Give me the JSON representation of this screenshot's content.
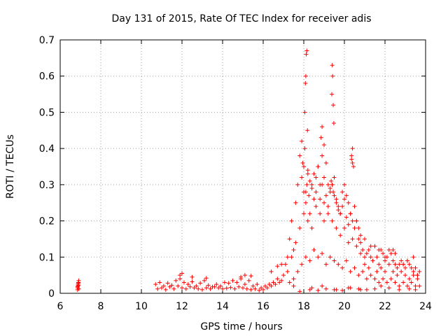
{
  "chart_data": {
    "type": "scatter",
    "title": "Day 131 of 2015, Rate Of TEC Index for receiver adis",
    "xlabel": "GPS time / hours",
    "ylabel": "ROTI / TECUs",
    "xlim": [
      6,
      24
    ],
    "ylim": [
      0,
      0.7
    ],
    "xticks": [
      6,
      8,
      10,
      12,
      14,
      16,
      18,
      20,
      22,
      24
    ],
    "yticks": [
      0,
      0.1,
      0.2,
      0.3,
      0.4,
      0.5,
      0.6,
      0.7
    ],
    "grid": true,
    "marker": "+",
    "color": "#ff0000",
    "series": [
      {
        "name": "ROTI",
        "x": [
          6.85,
          6.86,
          6.87,
          6.88,
          6.9,
          6.91,
          6.92,
          6.86,
          6.89,
          6.9,
          10.7,
          10.9,
          11.1,
          11.3,
          11.5,
          11.7,
          11.9,
          12.1,
          12.3,
          12.5,
          12.7,
          12.9,
          13.1,
          13.3,
          13.5,
          13.7,
          13.9,
          14.1,
          14.3,
          14.5,
          14.7,
          14.9,
          15.1,
          15.3,
          15.5,
          15.7,
          15.9,
          16.1,
          16.3,
          16.5,
          16.7,
          16.9,
          10.8,
          11.0,
          11.2,
          11.4,
          11.6,
          11.8,
          12.0,
          12.2,
          12.4,
          12.6,
          12.8,
          13.0,
          13.2,
          13.4,
          13.6,
          13.8,
          14.0,
          14.2,
          14.4,
          14.6,
          14.8,
          15.0,
          15.2,
          15.4,
          15.6,
          15.8,
          16.0,
          16.2,
          16.4,
          16.6,
          16.8,
          11.9,
          12.0,
          12.5,
          13.2,
          14.9,
          15.1,
          15.4,
          16.4,
          16.7,
          16.9,
          17.0,
          17.1,
          17.2,
          17.3,
          17.4,
          17.5,
          17.6,
          17.7,
          17.8,
          17.9,
          18.0,
          18.1,
          18.2,
          18.3,
          18.4,
          18.5,
          18.6,
          18.7,
          18.8,
          18.9,
          19.0,
          19.1,
          19.2,
          19.3,
          19.4,
          19.5,
          19.6,
          19.7,
          19.8,
          19.9,
          20.0,
          20.1,
          20.2,
          20.3,
          20.4,
          20.5,
          20.6,
          20.7,
          20.8,
          20.9,
          21.0,
          21.1,
          21.2,
          21.3,
          21.4,
          21.5,
          21.6,
          21.7,
          21.8,
          21.9,
          22.0,
          22.1,
          22.2,
          22.3,
          22.4,
          22.5,
          22.6,
          22.7,
          22.8,
          22.9,
          23.0,
          23.1,
          23.2,
          23.3,
          23.4,
          23.5,
          23.6,
          23.7,
          17.2,
          17.4,
          17.6,
          17.8,
          18.0,
          18.2,
          18.4,
          18.6,
          18.8,
          19.0,
          19.2,
          19.4,
          19.6,
          19.8,
          20.0,
          20.2,
          20.4,
          20.6,
          20.8,
          21.0,
          21.2,
          21.4,
          21.6,
          21.8,
          22.0,
          22.2,
          22.4,
          22.6,
          22.8,
          23.0,
          23.2,
          23.4,
          23.6,
          17.3,
          17.5,
          17.7,
          17.9,
          18.1,
          18.3,
          18.5,
          18.7,
          18.9,
          19.1,
          19.3,
          19.5,
          19.7,
          19.9,
          20.1,
          20.3,
          20.5,
          20.7,
          20.9,
          21.1,
          21.3,
          21.5,
          21.7,
          21.9,
          22.1,
          22.3,
          22.5,
          22.7,
          22.9,
          23.1,
          23.3,
          23.5,
          23.7,
          17.9,
          17.95,
          18.0,
          18.05,
          18.1,
          18.15,
          18.2,
          18.25,
          18.3,
          18.4,
          18.5,
          18.6,
          18.7,
          18.8,
          18.9,
          19.0,
          19.1,
          19.2,
          19.3,
          19.35,
          19.4,
          19.45,
          19.5,
          19.6,
          19.7,
          19.8,
          19.9,
          20.0,
          20.1,
          20.2,
          20.3,
          20.35,
          20.4,
          20.5,
          20.6,
          20.7,
          20.8,
          18.05,
          18.08,
          18.1,
          18.12,
          18.15,
          18.18,
          19.38,
          19.4,
          19.42,
          19.45,
          19.48,
          18.85,
          18.9,
          19.0,
          20.35,
          20.4,
          20.45,
          21.0,
          21.3,
          21.7,
          22.0,
          22.4,
          22.5,
          22.9,
          23.1,
          23.4,
          23.6,
          17.5,
          18.4,
          18.9,
          19.6,
          20.2,
          20.8,
          21.5,
          17.8,
          18.3,
          18.7,
          19.1,
          19.5,
          19.9,
          20.3,
          20.7,
          21.1,
          21.8,
          22.2,
          22.7,
          23.2,
          23.5
        ],
        "y": [
          0.01,
          0.015,
          0.02,
          0.025,
          0.03,
          0.035,
          0.012,
          0.018,
          0.028,
          0.022,
          0.025,
          0.03,
          0.02,
          0.028,
          0.022,
          0.035,
          0.04,
          0.03,
          0.025,
          0.032,
          0.02,
          0.028,
          0.035,
          0.022,
          0.018,
          0.025,
          0.02,
          0.03,
          0.028,
          0.035,
          0.03,
          0.04,
          0.025,
          0.035,
          0.02,
          0.025,
          0.015,
          0.02,
          0.025,
          0.03,
          0.04,
          0.035,
          0.012,
          0.015,
          0.01,
          0.018,
          0.012,
          0.02,
          0.015,
          0.012,
          0.018,
          0.015,
          0.012,
          0.01,
          0.015,
          0.012,
          0.018,
          0.015,
          0.012,
          0.014,
          0.016,
          0.012,
          0.018,
          0.015,
          0.012,
          0.01,
          0.012,
          0.008,
          0.01,
          0.015,
          0.02,
          0.025,
          0.03,
          0.05,
          0.055,
          0.045,
          0.042,
          0.045,
          0.05,
          0.048,
          0.06,
          0.075,
          0.08,
          0.05,
          0.08,
          0.1,
          0.15,
          0.2,
          0.12,
          0.25,
          0.3,
          0.38,
          0.42,
          0.35,
          0.28,
          0.33,
          0.22,
          0.3,
          0.26,
          0.32,
          0.35,
          0.3,
          0.38,
          0.25,
          0.36,
          0.3,
          0.28,
          0.3,
          0.32,
          0.26,
          0.24,
          0.22,
          0.28,
          0.3,
          0.27,
          0.25,
          0.22,
          0.2,
          0.18,
          0.2,
          0.15,
          0.14,
          0.12,
          0.1,
          0.11,
          0.12,
          0.1,
          0.09,
          0.13,
          0.1,
          0.08,
          0.12,
          0.11,
          0.09,
          0.1,
          0.12,
          0.11,
          0.09,
          0.08,
          0.07,
          0.08,
          0.09,
          0.08,
          0.07,
          0.09,
          0.08,
          0.07,
          0.06,
          0.07,
          0.05,
          0.06,
          0.06,
          0.1,
          0.14,
          0.18,
          0.22,
          0.2,
          0.18,
          0.24,
          0.22,
          0.2,
          0.22,
          0.2,
          0.18,
          0.16,
          0.18,
          0.14,
          0.15,
          0.13,
          0.11,
          0.08,
          0.07,
          0.09,
          0.06,
          0.07,
          0.06,
          0.08,
          0.06,
          0.05,
          0.06,
          0.05,
          0.04,
          0.05,
          0.04,
          0.03,
          0.04,
          0.06,
          0.08,
          0.1,
          0.09,
          0.12,
          0.1,
          0.11,
          0.08,
          0.1,
          0.09,
          0.08,
          0.07,
          0.09,
          0.06,
          0.07,
          0.05,
          0.06,
          0.04,
          0.05,
          0.04,
          0.03,
          0.04,
          0.03,
          0.04,
          0.03,
          0.02,
          0.03,
          0.02,
          0.03,
          0.02,
          0.02,
          0.32,
          0.36,
          0.28,
          0.4,
          0.25,
          0.3,
          0.34,
          0.27,
          0.31,
          0.29,
          0.33,
          0.28,
          0.35,
          0.26,
          0.3,
          0.32,
          0.27,
          0.24,
          0.29,
          0.31,
          0.3,
          0.28,
          0.27,
          0.25,
          0.23,
          0.22,
          0.24,
          0.26,
          0.21,
          0.19,
          0.22,
          0.37,
          0.4,
          0.24,
          0.2,
          0.18,
          0.16,
          0.5,
          0.58,
          0.6,
          0.66,
          0.67,
          0.45,
          0.55,
          0.63,
          0.6,
          0.52,
          0.47,
          0.43,
          0.46,
          0.41,
          0.38,
          0.36,
          0.35,
          0.15,
          0.13,
          0.12,
          0.1,
          0.12,
          0.11,
          0.08,
          0.09,
          0.1,
          0.05,
          0.02,
          0.015,
          0.02,
          0.01,
          0.015,
          0.01,
          0.012,
          0.005,
          0.01,
          0.008,
          0.012,
          0.01,
          0.008,
          0.015,
          0.012,
          0.01,
          0.02,
          0.015,
          0.01,
          0.012,
          0.01
        ]
      }
    ]
  }
}
